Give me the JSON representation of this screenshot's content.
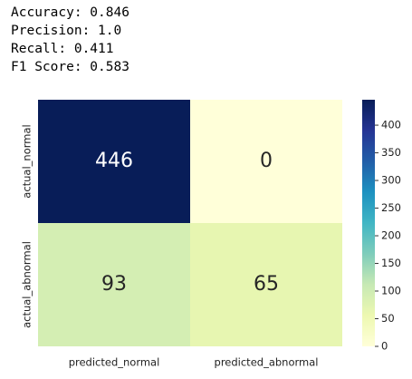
{
  "output_lines": [
    "Accuracy: 0.846",
    "Precision: 1.0",
    "Recall: 0.411",
    "F1 Score: 0.583"
  ],
  "chart_data": {
    "type": "heatmap",
    "x_categories": [
      "predicted_normal",
      "predicted_abnormal"
    ],
    "y_categories": [
      "actual_normal",
      "actual_abnormal"
    ],
    "values": [
      [
        446,
        0
      ],
      [
        93,
        65
      ]
    ],
    "colormap": "YlGnBu",
    "zlim": [
      0,
      446
    ],
    "zticks": [
      0,
      50,
      100,
      150,
      200,
      250,
      300,
      350,
      400
    ]
  }
}
